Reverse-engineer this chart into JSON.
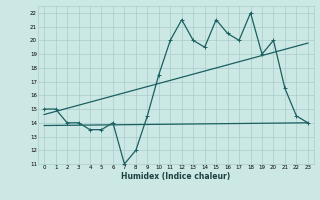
{
  "xlabel": "Humidex (Indice chaleur)",
  "ylabel": "",
  "xlim": [
    -0.5,
    23.5
  ],
  "ylim": [
    11,
    22.5
  ],
  "xticks": [
    0,
    1,
    2,
    3,
    4,
    5,
    6,
    7,
    8,
    9,
    10,
    11,
    12,
    13,
    14,
    15,
    16,
    17,
    18,
    19,
    20,
    21,
    22,
    23
  ],
  "yticks": [
    11,
    12,
    13,
    14,
    15,
    16,
    17,
    18,
    19,
    20,
    21,
    22
  ],
  "bg_color": "#cce8e4",
  "grid_color": "#aacccc",
  "line_color": "#1a6060",
  "main_x": [
    0,
    1,
    2,
    3,
    4,
    5,
    6,
    7,
    8,
    9,
    10,
    11,
    12,
    13,
    14,
    15,
    16,
    17,
    18,
    19,
    20,
    21,
    22,
    23
  ],
  "main_y": [
    15,
    15,
    14,
    14,
    13.5,
    13.5,
    14,
    11,
    12,
    14.5,
    17.5,
    20,
    21.5,
    20,
    19.5,
    21.5,
    20.5,
    20,
    22,
    19,
    20,
    16.5,
    14.5,
    14
  ],
  "trend1_x": [
    0,
    23
  ],
  "trend1_y": [
    14.6,
    19.8
  ],
  "trend2_x": [
    0,
    23
  ],
  "trend2_y": [
    13.8,
    14.0
  ],
  "marker_size": 2.5,
  "linewidth": 0.9
}
